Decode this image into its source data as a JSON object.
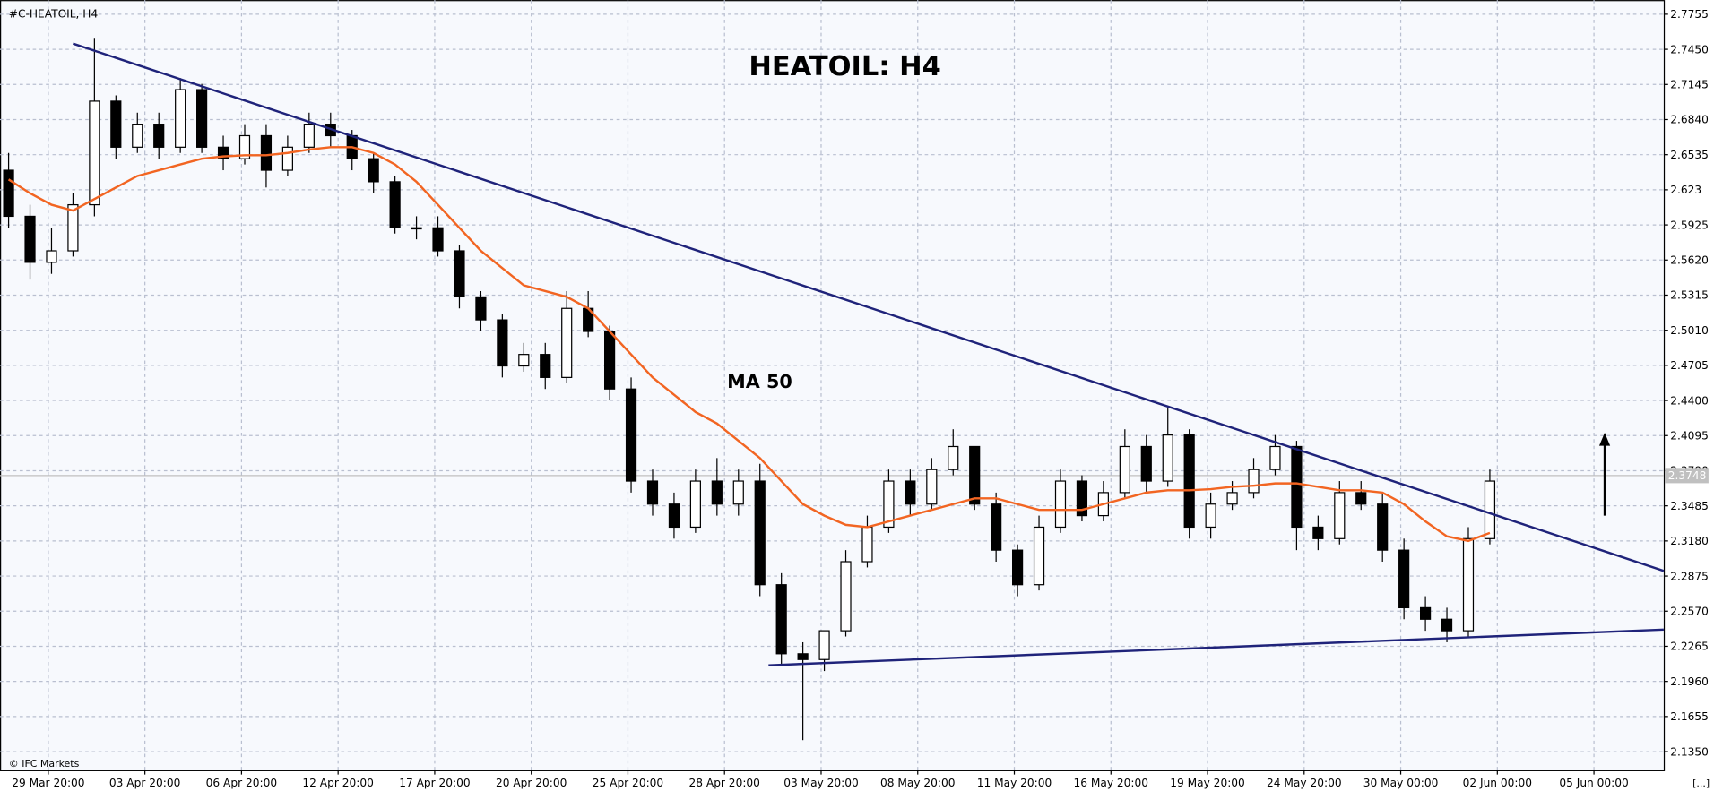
{
  "chart_data": {
    "type": "candlestick",
    "symbol_label": "#C-HEATOIL, H4",
    "title": "HEATOIL: H4",
    "ma_label": "MA 50",
    "footer_left": "© IFC Markets",
    "footer_right": "[...]",
    "current_price": 2.3748,
    "xlim": [
      0,
      77.5
    ],
    "ylim": [
      2.1189,
      2.7878
    ],
    "yticks": [
      2.7755,
      {
        "value": 2.745,
        "label": "2.7450"
      },
      2.7145,
      {
        "value": 2.684,
        "label": "2.6840"
      },
      2.6535,
      2.623,
      2.5925,
      {
        "value": 2.562,
        "label": "2.5620"
      },
      2.5315,
      {
        "value": 2.501,
        "label": "2.5010"
      },
      2.4705,
      {
        "value": 2.44,
        "label": "2.4400"
      },
      2.4095,
      {
        "value": 2.379,
        "label": "2.3790"
      },
      2.3485,
      {
        "value": 2.318,
        "label": "2.3180"
      },
      2.2875,
      {
        "value": 2.257,
        "label": "2.2570"
      },
      2.2265,
      {
        "value": 2.196,
        "label": "2.1960"
      },
      2.1655,
      {
        "value": 2.135,
        "label": "2.1350"
      }
    ],
    "xticks": [
      {
        "value": 2.25,
        "label": "29 Mar 20:00"
      },
      {
        "value": 6.75,
        "label": "03 Apr 20:00"
      },
      {
        "value": 11.25,
        "label": "06 Apr 20:00"
      },
      {
        "value": 15.75,
        "label": "12 Apr 20:00"
      },
      {
        "value": 20.25,
        "label": "17 Apr 20:00"
      },
      {
        "value": 24.75,
        "label": "20 Apr 20:00"
      },
      {
        "value": 29.25,
        "label": "25 Apr 20:00"
      },
      {
        "value": 33.75,
        "label": "28 Apr 20:00"
      },
      {
        "value": 38.25,
        "label": "03 May 20:00"
      },
      {
        "value": 42.75,
        "label": "08 May 20:00"
      },
      {
        "value": 47.25,
        "label": "11 May 20:00"
      },
      {
        "value": 51.75,
        "label": "16 May 20:00"
      },
      {
        "value": 56.25,
        "label": "19 May 20:00"
      },
      {
        "value": 60.75,
        "label": "24 May 20:00"
      },
      {
        "value": 65.25,
        "label": "30 May 00:00"
      },
      {
        "value": 69.75,
        "label": "02 Jun 00:00"
      },
      {
        "value": 74.25,
        "label": "05 Jun 00:00"
      }
    ],
    "grid": true,
    "up_color": "#ffffff",
    "down_color": "#000000",
    "ma_color": "#f26522",
    "trendline_color": "#1f237a",
    "x": [
      0.4,
      1.4,
      2.4,
      3.4,
      4.4,
      5.4,
      6.4,
      7.4,
      8.4,
      9.4,
      10.4,
      11.4,
      12.4,
      13.4,
      14.4,
      15.4,
      16.4,
      17.4,
      18.4,
      19.4,
      20.4,
      21.4,
      22.4,
      23.4,
      24.4,
      25.4,
      26.4,
      27.4,
      28.4,
      29.4,
      30.4,
      31.4,
      32.4,
      33.4,
      34.4,
      35.4,
      36.4,
      37.4,
      38.4,
      39.4,
      40.4,
      41.4,
      42.4,
      43.4,
      44.4,
      45.4,
      46.4,
      47.4,
      48.4,
      49.4,
      50.4,
      51.4,
      52.4,
      53.4,
      54.4,
      55.4,
      56.4,
      57.4,
      58.4,
      59.4,
      60.4,
      61.4,
      62.4,
      63.4,
      64.4,
      65.4,
      66.4,
      67.4,
      68.4,
      69.4
    ],
    "open": [
      2.64,
      2.6,
      2.56,
      2.57,
      2.61,
      2.7,
      2.66,
      2.68,
      2.66,
      2.71,
      2.66,
      2.65,
      2.67,
      2.64,
      2.66,
      2.68,
      2.67,
      2.65,
      2.63,
      2.59,
      2.59,
      2.57,
      2.53,
      2.51,
      2.47,
      2.48,
      2.46,
      2.52,
      2.5,
      2.45,
      2.37,
      2.35,
      2.33,
      2.37,
      2.35,
      2.37,
      2.28,
      2.22,
      2.215,
      2.24,
      2.3,
      2.33,
      2.37,
      2.35,
      2.38,
      2.4,
      2.35,
      2.31,
      2.28,
      2.33,
      2.37,
      2.34,
      2.36,
      2.4,
      2.37,
      2.41,
      2.33,
      2.35,
      2.36,
      2.38,
      2.4,
      2.33,
      2.32,
      2.36,
      2.35,
      2.31,
      2.26,
      2.25,
      2.24,
      2.32
    ],
    "high": [
      2.655,
      2.61,
      2.59,
      2.62,
      2.755,
      2.705,
      2.69,
      2.69,
      2.72,
      2.715,
      2.67,
      2.68,
      2.68,
      2.67,
      2.69,
      2.69,
      2.675,
      2.655,
      2.635,
      2.6,
      2.6,
      2.575,
      2.535,
      2.515,
      2.49,
      2.49,
      2.535,
      2.535,
      2.505,
      2.46,
      2.38,
      2.36,
      2.38,
      2.39,
      2.38,
      2.385,
      2.29,
      2.23,
      2.235,
      2.31,
      2.34,
      2.38,
      2.38,
      2.39,
      2.415,
      2.4,
      2.36,
      2.315,
      2.34,
      2.38,
      2.375,
      2.37,
      2.415,
      2.41,
      2.435,
      2.415,
      2.36,
      2.37,
      2.39,
      2.41,
      2.405,
      2.34,
      2.37,
      2.37,
      2.36,
      2.32,
      2.27,
      2.26,
      2.33,
      2.38
    ],
    "low": [
      2.59,
      2.545,
      2.55,
      2.565,
      2.6,
      2.65,
      2.655,
      2.65,
      2.655,
      2.655,
      2.64,
      2.645,
      2.625,
      2.635,
      2.655,
      2.66,
      2.64,
      2.62,
      2.585,
      2.58,
      2.565,
      2.52,
      2.5,
      2.46,
      2.465,
      2.45,
      2.455,
      2.495,
      2.44,
      2.36,
      2.34,
      2.32,
      2.325,
      2.34,
      2.34,
      2.27,
      2.21,
      2.145,
      2.205,
      2.235,
      2.295,
      2.325,
      2.34,
      2.345,
      2.375,
      2.345,
      2.3,
      2.27,
      2.275,
      2.325,
      2.335,
      2.335,
      2.355,
      2.36,
      2.365,
      2.32,
      2.32,
      2.345,
      2.355,
      2.375,
      2.31,
      2.31,
      2.315,
      2.345,
      2.3,
      2.25,
      2.24,
      2.23,
      2.235,
      2.315
    ],
    "close": [
      2.6,
      2.56,
      2.57,
      2.61,
      2.7,
      2.66,
      2.68,
      2.66,
      2.71,
      2.66,
      2.65,
      2.67,
      2.64,
      2.66,
      2.68,
      2.67,
      2.65,
      2.63,
      2.59,
      2.59,
      2.57,
      2.53,
      2.51,
      2.47,
      2.48,
      2.46,
      2.52,
      2.5,
      2.45,
      2.37,
      2.35,
      2.33,
      2.37,
      2.35,
      2.37,
      2.28,
      2.22,
      2.215,
      2.24,
      2.3,
      2.33,
      2.37,
      2.35,
      2.38,
      2.4,
      2.35,
      2.31,
      2.28,
      2.33,
      2.37,
      2.34,
      2.36,
      2.4,
      2.37,
      2.41,
      2.33,
      2.35,
      2.36,
      2.38,
      2.4,
      2.33,
      2.32,
      2.36,
      2.35,
      2.31,
      2.26,
      2.25,
      2.24,
      2.32,
      2.37
    ],
    "ma": [
      2.632,
      2.62,
      2.61,
      2.605,
      2.615,
      2.625,
      2.635,
      2.64,
      2.645,
      2.65,
      2.652,
      2.653,
      2.653,
      2.655,
      2.658,
      2.66,
      2.66,
      2.655,
      2.645,
      2.63,
      2.61,
      2.59,
      2.57,
      2.555,
      2.54,
      2.535,
      2.53,
      2.52,
      2.5,
      2.48,
      2.46,
      2.445,
      2.43,
      2.42,
      2.405,
      2.39,
      2.37,
      2.35,
      2.34,
      2.332,
      2.33,
      2.335,
      2.34,
      2.345,
      2.35,
      2.355,
      2.355,
      2.35,
      2.345,
      2.345,
      2.345,
      2.35,
      2.355,
      2.36,
      2.362,
      2.362,
      2.363,
      2.365,
      2.366,
      2.368,
      2.368,
      2.365,
      2.362,
      2.362,
      2.36,
      2.35,
      2.335,
      2.322,
      2.318,
      2.325
    ],
    "trendlines": [
      {
        "x": [
          3.4,
          77.5
        ],
        "y": [
          2.75,
          2.292
        ]
      },
      {
        "x": [
          35.8,
          77.5
        ],
        "y": [
          2.21,
          2.241
        ]
      }
    ]
  }
}
